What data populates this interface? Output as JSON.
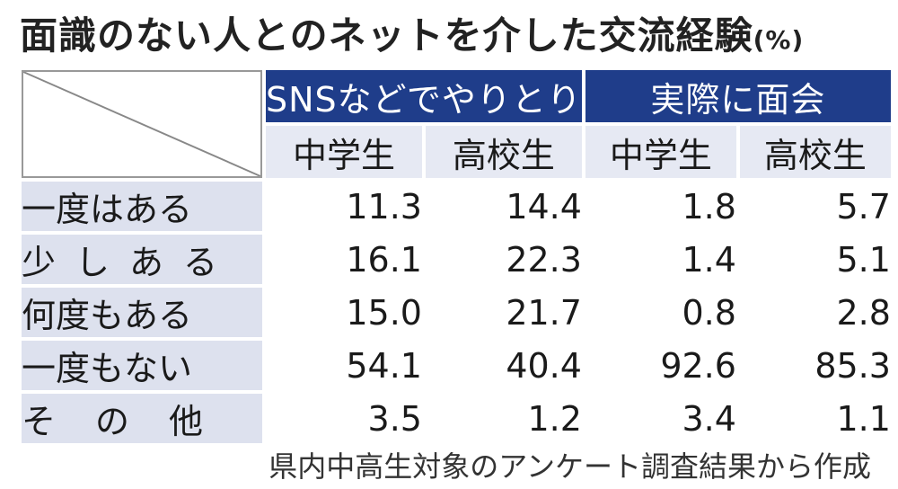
{
  "title": "面識のない人とのネットを介した交流経験",
  "unit": "(%)",
  "source": "県内中高生対象のアンケート調査結果から作成",
  "chart_data": {
    "type": "table",
    "groups": [
      "SNSなどでやりとり",
      "実際に面会"
    ],
    "sub_headers": [
      "中学生",
      "高校生",
      "中学生",
      "高校生"
    ],
    "rows": [
      {
        "label": "一度はある",
        "values": [
          "11.3",
          "14.4",
          "1.8",
          "5.7"
        ]
      },
      {
        "label": "少しある",
        "values": [
          "16.1",
          "22.3",
          "1.4",
          "5.1"
        ]
      },
      {
        "label": "何度もある",
        "values": [
          "15.0",
          "21.7",
          "0.8",
          "2.8"
        ]
      },
      {
        "label": "一度もない",
        "values": [
          "54.1",
          "40.4",
          "92.6",
          "85.3"
        ]
      },
      {
        "label": "その他",
        "values": [
          "3.5",
          "1.2",
          "3.4",
          "1.1"
        ]
      }
    ]
  },
  "colors": {
    "header_bg": "#1f3d8a",
    "subheader_bg": "#e6e9f3",
    "rowlabel_bg": "#dde1ee"
  }
}
